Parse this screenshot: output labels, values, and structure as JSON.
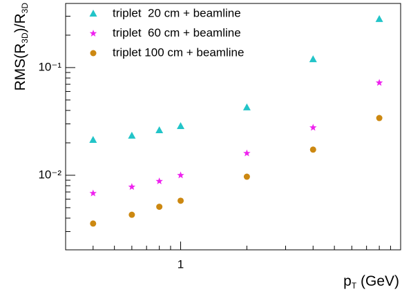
{
  "chart_data": {
    "type": "scatter",
    "xlabel": [
      {
        "text": "p"
      },
      {
        "text": "T",
        "sub": true
      },
      {
        "text": " (GeV)"
      }
    ],
    "ylabel": [
      {
        "text": "RMS(R"
      },
      {
        "text": "3D",
        "sub": true
      },
      {
        "text": ")/R"
      },
      {
        "text": "3D",
        "sub": true
      }
    ],
    "xscale": "log",
    "yscale": "log",
    "xlim": [
      0.3,
      10
    ],
    "ylim": [
      0.00203,
      0.394
    ],
    "xticks": [
      1
    ],
    "yticks": [
      {
        "value": 0.01,
        "label": "10⁻²"
      },
      {
        "value": 0.1,
        "label": "10⁻¹"
      }
    ],
    "xminorticks": [
      0.4,
      0.5,
      0.6,
      0.7,
      0.8,
      0.9,
      2,
      3,
      4,
      5,
      6,
      7,
      8,
      9
    ],
    "yminorticks": [
      0.003,
      0.004,
      0.005,
      0.006,
      0.007,
      0.008,
      0.009,
      0.02,
      0.03,
      0.04,
      0.05,
      0.06,
      0.07,
      0.08,
      0.09,
      0.2,
      0.3
    ],
    "legend": "upper left",
    "x": [
      0.4,
      0.6,
      0.8,
      1,
      2,
      4,
      8
    ],
    "series": [
      {
        "name": "triplet  20 cm + beamline",
        "color": "#22c4c8",
        "marker": "triangle",
        "values": [
          0.0212,
          0.0232,
          0.0261,
          0.0285,
          0.0425,
          0.119,
          0.281
        ]
      },
      {
        "name": "triplet  60 cm + beamline",
        "color": "#ee22ee",
        "marker": "star",
        "values": [
          0.0068,
          0.0078,
          0.0088,
          0.01,
          0.016,
          0.0277,
          0.0723
        ]
      },
      {
        "name": "triplet 100 cm + beamline",
        "color": "#cc8811",
        "marker": "circle",
        "values": [
          0.00356,
          0.0043,
          0.0051,
          0.0058,
          0.0097,
          0.0173,
          0.034
        ]
      }
    ]
  }
}
